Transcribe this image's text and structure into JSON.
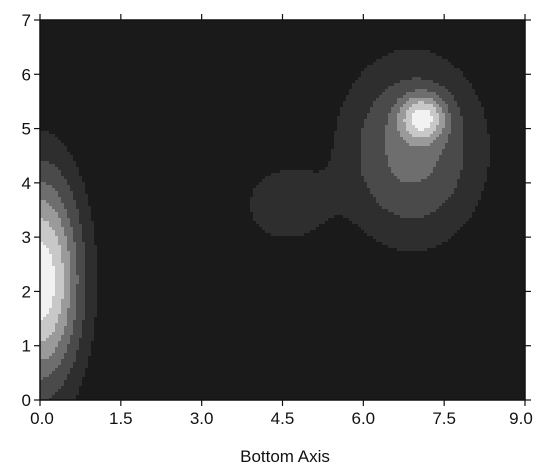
{
  "chart_data": {
    "type": "heatmap",
    "subtype": "filled-contour",
    "title": "",
    "xlabel": "Bottom Axis",
    "ylabel": "",
    "xlim": [
      0,
      9
    ],
    "ylim": [
      0,
      7
    ],
    "x_ticks": [
      0,
      1.5,
      3.0,
      4.5,
      6.0,
      7.5,
      9.0
    ],
    "x_tick_labels": [
      "0.0",
      "1.5",
      "3.0",
      "4.5",
      "6.0",
      "7.5",
      "9.0"
    ],
    "y_ticks": [
      0,
      1,
      2,
      3,
      4,
      5,
      6,
      7
    ],
    "y_tick_labels": [
      "0",
      "1",
      "2",
      "3",
      "4",
      "5",
      "6",
      "7"
    ],
    "grid": false,
    "colorscale": "grayscale, dark = low, light = high",
    "level_colors": [
      "#1a1a1a",
      "#2e2e2e",
      "#4a4a4a",
      "#6e6e6e",
      "#9a9a9a",
      "#c8c8c8",
      "#f2f2f2"
    ],
    "peaks": [
      {
        "x": 0.0,
        "y": 2.2,
        "amplitude": 0.95,
        "sx": 0.5,
        "sy": 1.3
      },
      {
        "x": 7.1,
        "y": 5.2,
        "amplitude": 0.6,
        "sx": 0.28,
        "sy": 0.28
      },
      {
        "x": 6.9,
        "y": 4.6,
        "amplitude": 0.42,
        "sx": 0.85,
        "sy": 1.1
      },
      {
        "x": 4.55,
        "y": 3.6,
        "amplitude": 0.2,
        "sx": 0.55,
        "sy": 0.5
      }
    ],
    "levels": [
      0.1,
      0.22,
      0.36,
      0.5,
      0.65,
      0.82
    ]
  }
}
